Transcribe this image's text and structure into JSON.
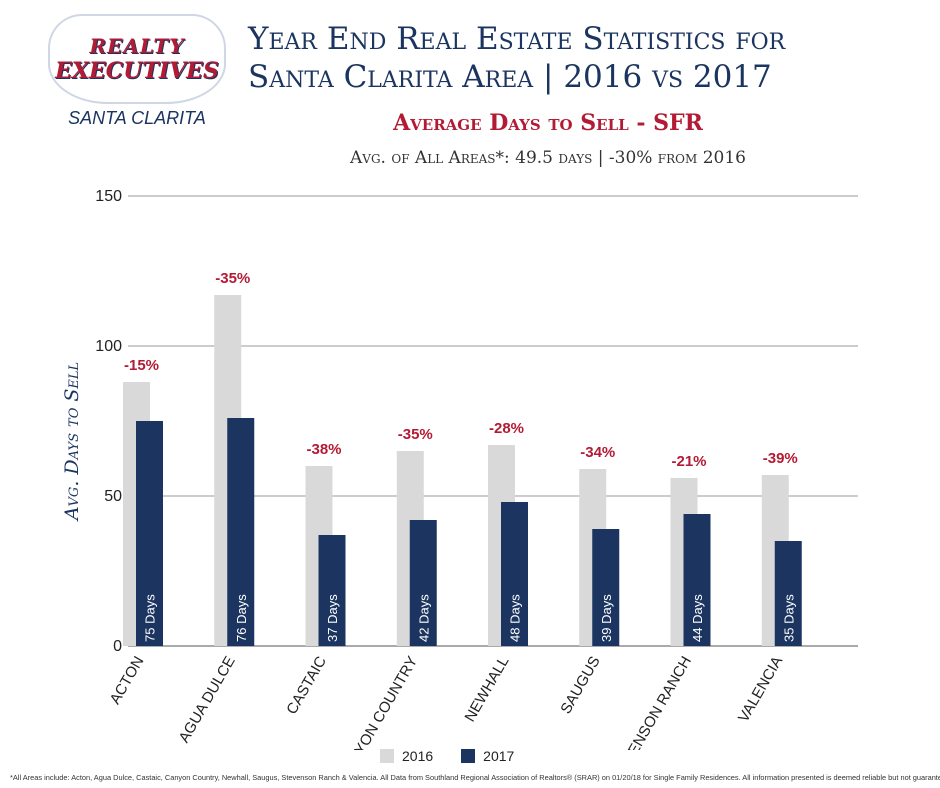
{
  "logo": {
    "line1": "REALTY",
    "line2": "EXECUTIVES",
    "sub": "SANTA CLARITA"
  },
  "header": {
    "title_line1": "Year End Real Estate Statistics for",
    "title_line2": "Santa Clarita Area | 2016 vs 2017",
    "subtitle": "Average Days to Sell - SFR",
    "summary": "Avg. of All Areas*:  49.5 days | -30% from 2016"
  },
  "colors": {
    "bar_2016": "#d9d9d9",
    "bar_2017": "#1b3560",
    "change_label": "#b31b34",
    "grid": "#999999"
  },
  "chart_data": {
    "type": "bar",
    "title": "Average Days to Sell - SFR",
    "xlabel": "",
    "ylabel": "Avg. Days to Sell",
    "ylim": [
      0,
      150
    ],
    "yticks": [
      0,
      50,
      100,
      150
    ],
    "categories": [
      "ACTON",
      "AGUA DULCE",
      "CASTAIC",
      "CANYON COUNTRY",
      "NEWHALL",
      "SAUGUS",
      "STEVENSON RANCH",
      "VALENCIA"
    ],
    "series": [
      {
        "name": "2016",
        "values": [
          88,
          117,
          60,
          65,
          67,
          59,
          56,
          57
        ]
      },
      {
        "name": "2017",
        "values": [
          75,
          76,
          37,
          42,
          48,
          39,
          44,
          35
        ]
      }
    ],
    "bar_labels": [
      "75 Days",
      "76 Days",
      "37 Days",
      "42 Days",
      "48 Days",
      "39 Days",
      "44 Days",
      "35 Days"
    ],
    "change_labels": [
      "-15%",
      "-35%",
      "-38%",
      "-35%",
      "-28%",
      "-34%",
      "-21%",
      "-39%"
    ],
    "legend": [
      "2016",
      "2017"
    ],
    "legend_position": "bottom-center"
  },
  "footnote": "*All Areas include: Acton, Agua Dulce, Castaic, Canyon Country, Newhall, Saugus, Stevenson Ranch & Valencia. All Data from Southland Regional Association of Realtors® (SRAR) on 01/20/18 for Single Family Residences. All information presented is deemed reliable but not guaranteed."
}
